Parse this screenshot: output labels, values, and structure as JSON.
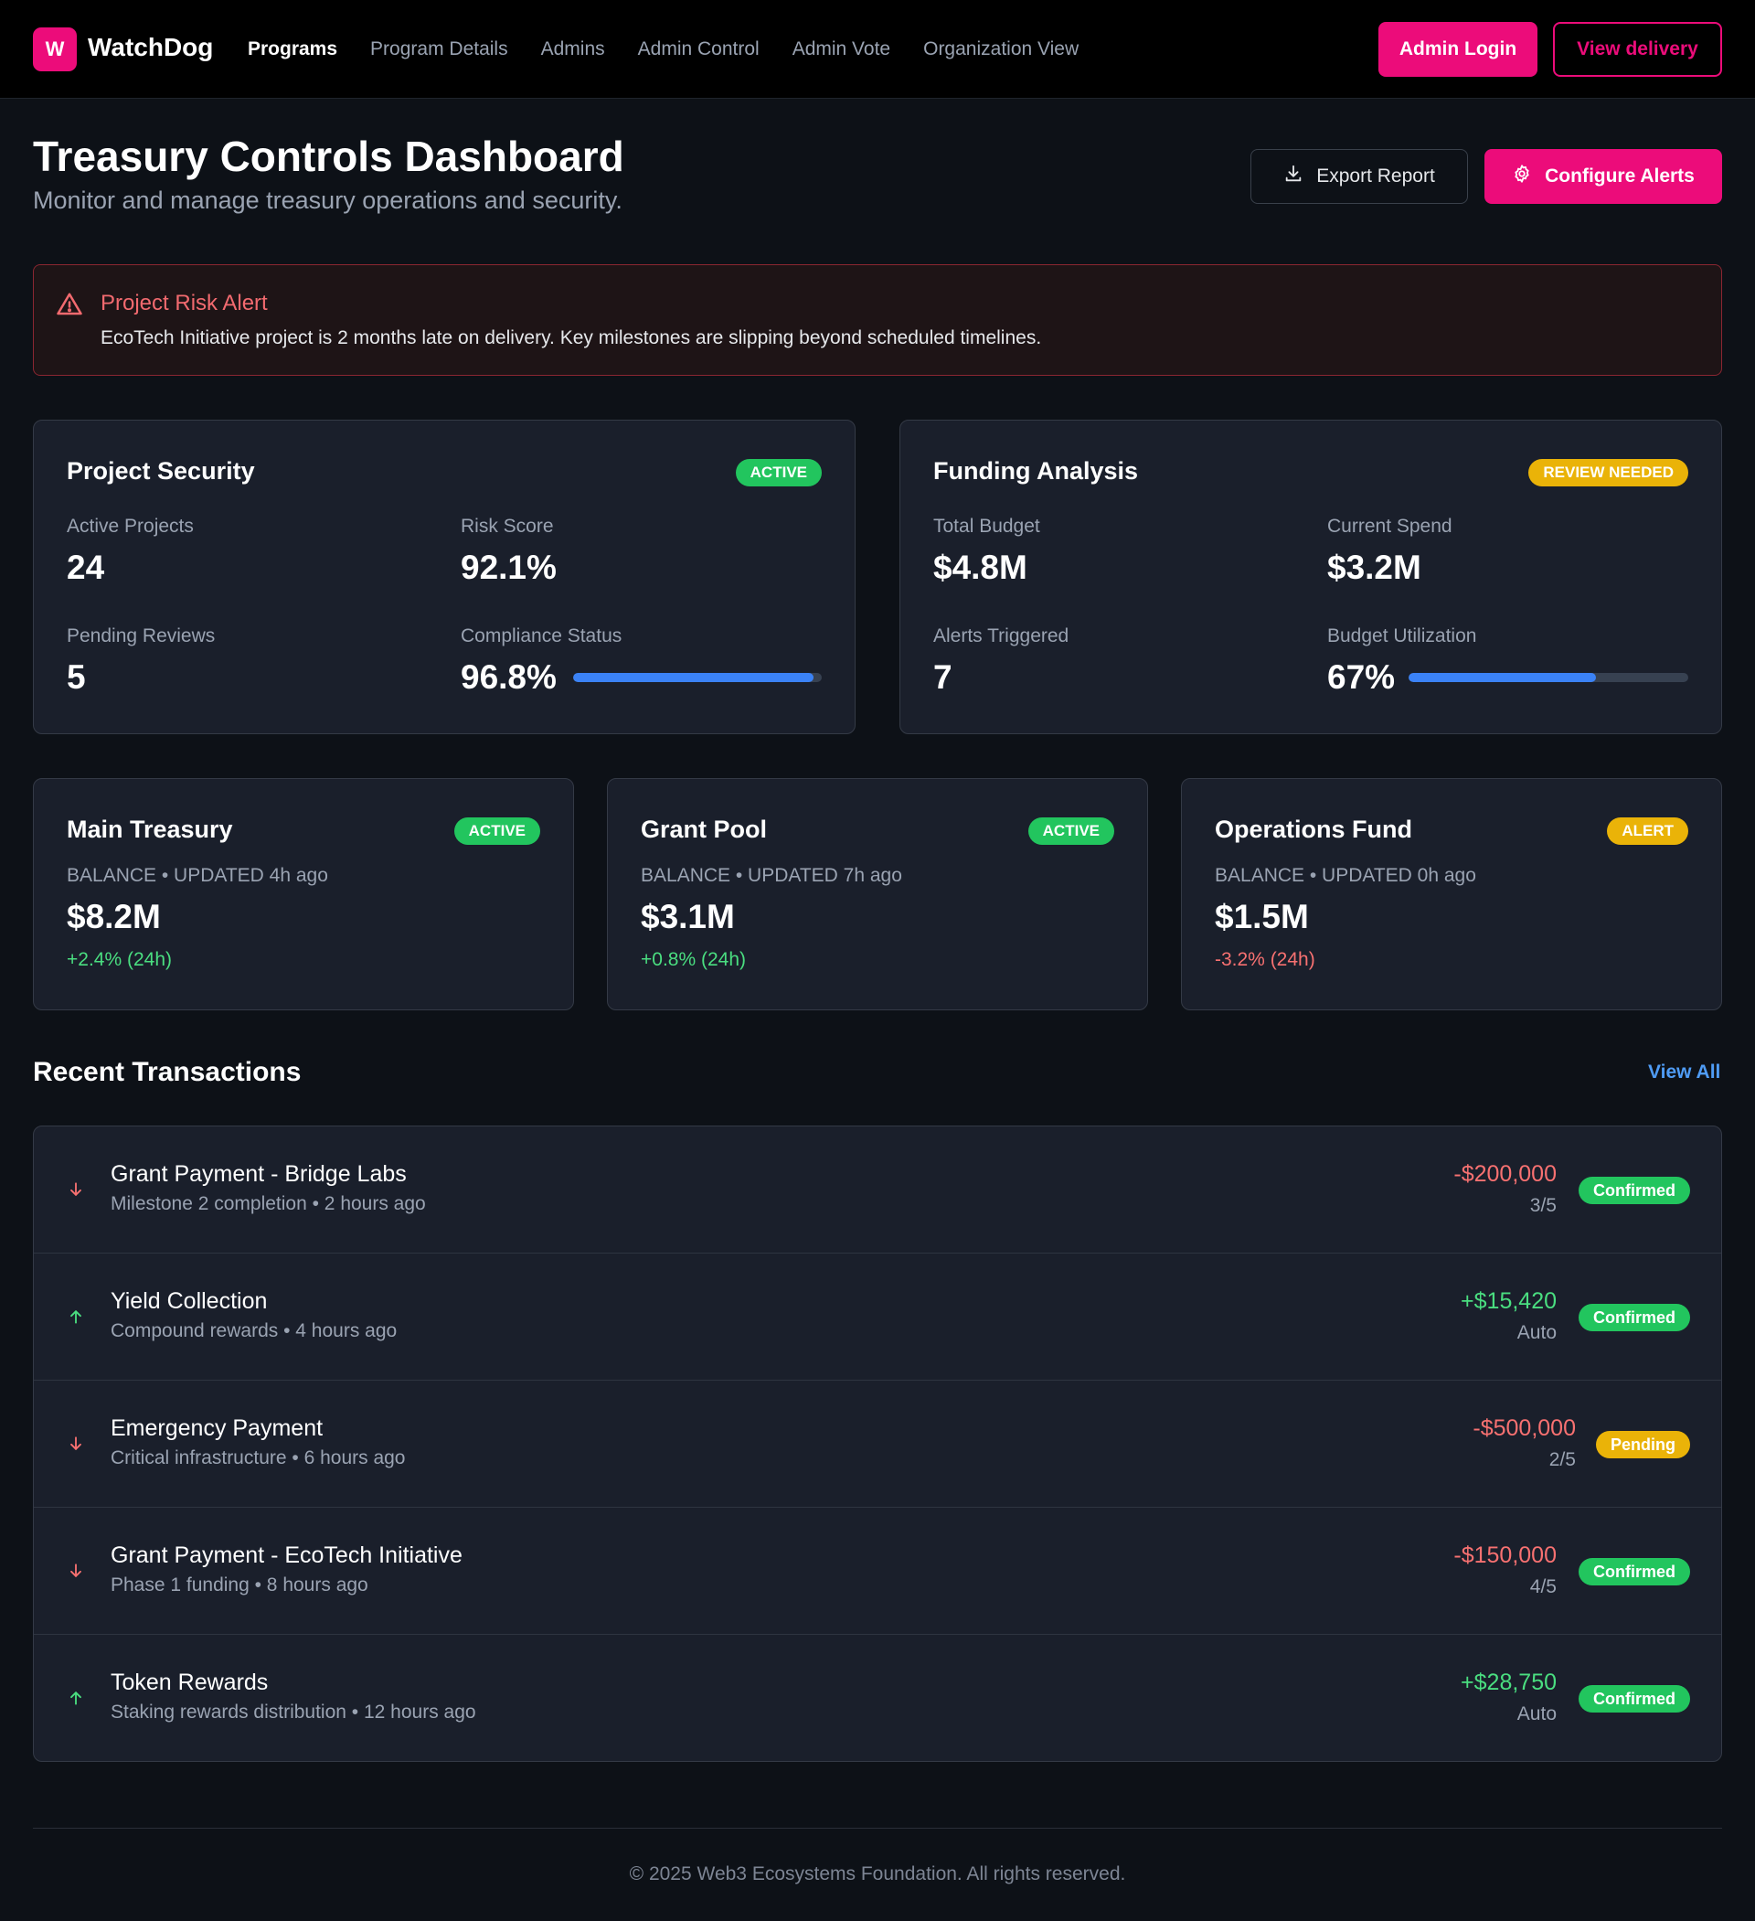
{
  "header": {
    "logo_letter": "W",
    "brand": "WatchDog",
    "nav": [
      "Programs",
      "Program Details",
      "Admins",
      "Admin Control",
      "Admin Vote",
      "Organization View"
    ],
    "admin_login": "Admin Login",
    "view_delivery": "View delivery"
  },
  "page": {
    "title": "Treasury Controls Dashboard",
    "subtitle": "Monitor and manage treasury operations and security.",
    "export_label": "Export Report",
    "config_label": "Configure Alerts"
  },
  "alert": {
    "title": "Project Risk Alert",
    "text": "EcoTech Initiative project is 2 months late on delivery. Key milestones are slipping beyond scheduled timelines."
  },
  "security": {
    "title": "Project Security",
    "badge": "ACTIVE",
    "stats": [
      {
        "label": "Active Projects",
        "value": "24"
      },
      {
        "label": "Risk Score",
        "value": "92.1%"
      },
      {
        "label": "Pending Reviews",
        "value": "5"
      },
      {
        "label": "Compliance Status",
        "value": "96.8%"
      }
    ],
    "compliance_fraction": 0.968
  },
  "funding": {
    "title": "Funding Analysis",
    "badge": "REVIEW NEEDED",
    "stats": [
      {
        "label": "Total Budget",
        "value": "$4.8M"
      },
      {
        "label": "Current Spend",
        "value": "$3.2M"
      },
      {
        "label": "Alerts Triggered",
        "value": "7"
      },
      {
        "label": "Budget Utilization",
        "value": "67%"
      }
    ],
    "utilization_fraction": 0.67
  },
  "treasuries": [
    {
      "name": "Main Treasury",
      "badge": "ACTIVE",
      "meta": "BALANCE • UPDATED 4h ago",
      "balance": "$8.2M",
      "change": "+2.4% (24h)"
    },
    {
      "name": "Grant Pool",
      "badge": "ACTIVE",
      "meta": "BALANCE • UPDATED 7h ago",
      "balance": "$3.1M",
      "change": "+0.8% (24h)"
    },
    {
      "name": "Operations Fund",
      "badge": "ALERT",
      "meta": "BALANCE • UPDATED 0h ago",
      "balance": "$1.5M",
      "change": "-3.2% (24h)"
    }
  ],
  "transactions": {
    "heading": "Recent Transactions",
    "view_all": "View All",
    "items": [
      {
        "title": "Grant Payment - Bridge Labs",
        "sub": "Milestone 2 completion • 2 hours ago",
        "amount": "-$200,000",
        "sig": "3/5",
        "status": "Confirmed"
      },
      {
        "title": "Yield Collection",
        "sub": "Compound rewards • 4 hours ago",
        "amount": "+$15,420",
        "sig": "Auto",
        "status": "Confirmed"
      },
      {
        "title": "Emergency Payment",
        "sub": "Critical infrastructure • 6 hours ago",
        "amount": "-$500,000",
        "sig": "2/5",
        "status": "Pending"
      },
      {
        "title": "Grant Payment - EcoTech Initiative",
        "sub": "Phase 1 funding • 8 hours ago",
        "amount": "-$150,000",
        "sig": "4/5",
        "status": "Confirmed"
      },
      {
        "title": "Token Rewards",
        "sub": "Staking rewards distribution • 12 hours ago",
        "amount": "+$28,750",
        "sig": "Auto",
        "status": "Confirmed"
      }
    ]
  },
  "footer": "© 2025 Web3 Ecosystems Foundation. All rights reserved.",
  "colors": {
    "accent": "#ec0c7a",
    "positive": "#4ade80",
    "negative": "#f87171",
    "success": "#22c55e",
    "warning": "#eab308",
    "progress": "#3b82f6"
  }
}
